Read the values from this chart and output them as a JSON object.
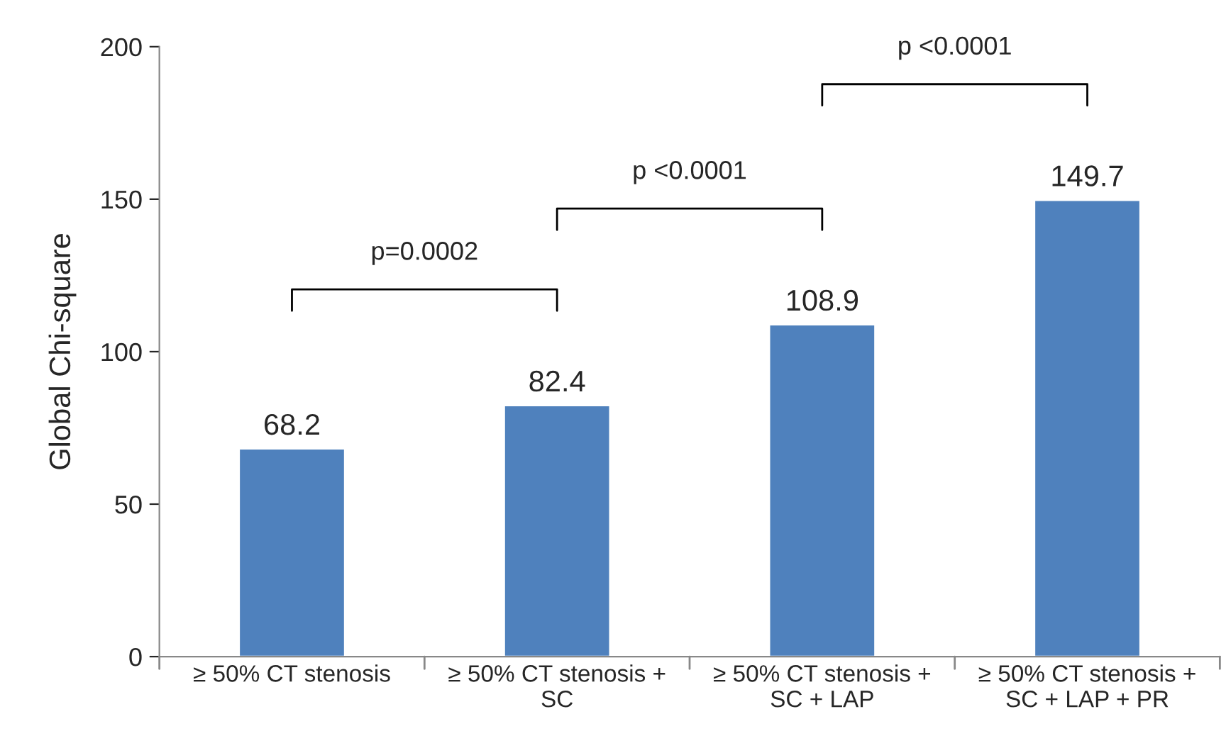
{
  "chart_data": {
    "type": "bar",
    "categories": [
      "≥ 50% CT stenosis",
      "≥ 50% CT stenosis + SC",
      "≥ 50% CT stenosis + SC + LAP",
      "≥ 50% CT stenosis + SC + LAP + PR"
    ],
    "values": [
      68.2,
      82.4,
      108.9,
      149.7
    ],
    "color": "#4f81bd",
    "ylabel": "Global Chi-square",
    "ylim": [
      0,
      200
    ],
    "yticks": [
      0,
      50,
      100,
      150,
      200
    ],
    "data_labels": true,
    "grid": false,
    "annotations": [
      "p=0.0002",
      "p <0.0001",
      "p <0.0001"
    ]
  }
}
